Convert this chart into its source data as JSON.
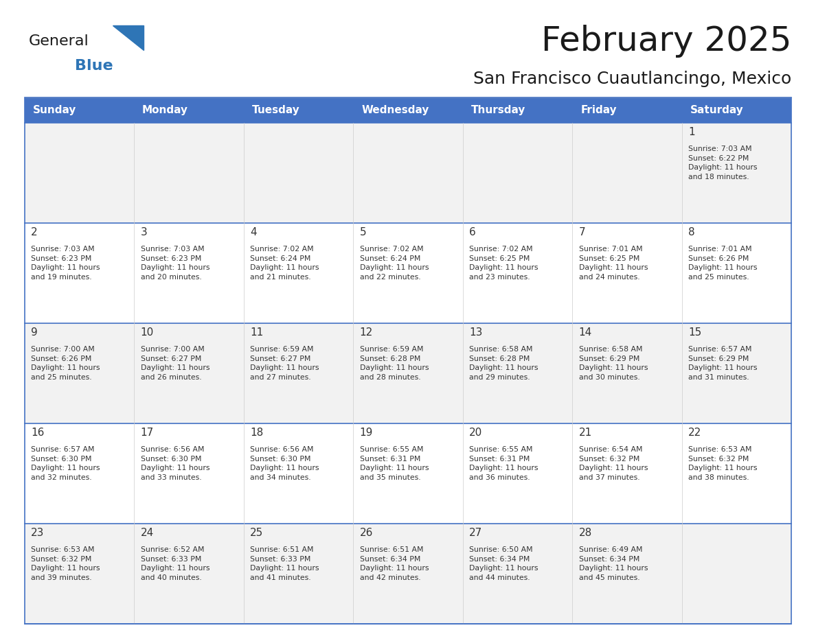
{
  "title": "February 2025",
  "subtitle": "San Francisco Cuautlancingo, Mexico",
  "header_color": "#4472C4",
  "header_text_color": "#FFFFFF",
  "day_names": [
    "Sunday",
    "Monday",
    "Tuesday",
    "Wednesday",
    "Thursday",
    "Friday",
    "Saturday"
  ],
  "background_color": "#FFFFFF",
  "cell_bg_color": "#FFFFFF",
  "alt_cell_bg_color": "#F2F2F2",
  "grid_color": "#4472C4",
  "date_color": "#333333",
  "info_color": "#333333",
  "logo_general_color": "#1a1a1a",
  "logo_blue_color": "#2E75B6",
  "calendar_data": [
    [
      {
        "day": "",
        "info": ""
      },
      {
        "day": "",
        "info": ""
      },
      {
        "day": "",
        "info": ""
      },
      {
        "day": "",
        "info": ""
      },
      {
        "day": "",
        "info": ""
      },
      {
        "day": "",
        "info": ""
      },
      {
        "day": "1",
        "info": "Sunrise: 7:03 AM\nSunset: 6:22 PM\nDaylight: 11 hours\nand 18 minutes."
      }
    ],
    [
      {
        "day": "2",
        "info": "Sunrise: 7:03 AM\nSunset: 6:23 PM\nDaylight: 11 hours\nand 19 minutes."
      },
      {
        "day": "3",
        "info": "Sunrise: 7:03 AM\nSunset: 6:23 PM\nDaylight: 11 hours\nand 20 minutes."
      },
      {
        "day": "4",
        "info": "Sunrise: 7:02 AM\nSunset: 6:24 PM\nDaylight: 11 hours\nand 21 minutes."
      },
      {
        "day": "5",
        "info": "Sunrise: 7:02 AM\nSunset: 6:24 PM\nDaylight: 11 hours\nand 22 minutes."
      },
      {
        "day": "6",
        "info": "Sunrise: 7:02 AM\nSunset: 6:25 PM\nDaylight: 11 hours\nand 23 minutes."
      },
      {
        "day": "7",
        "info": "Sunrise: 7:01 AM\nSunset: 6:25 PM\nDaylight: 11 hours\nand 24 minutes."
      },
      {
        "day": "8",
        "info": "Sunrise: 7:01 AM\nSunset: 6:26 PM\nDaylight: 11 hours\nand 25 minutes."
      }
    ],
    [
      {
        "day": "9",
        "info": "Sunrise: 7:00 AM\nSunset: 6:26 PM\nDaylight: 11 hours\nand 25 minutes."
      },
      {
        "day": "10",
        "info": "Sunrise: 7:00 AM\nSunset: 6:27 PM\nDaylight: 11 hours\nand 26 minutes."
      },
      {
        "day": "11",
        "info": "Sunrise: 6:59 AM\nSunset: 6:27 PM\nDaylight: 11 hours\nand 27 minutes."
      },
      {
        "day": "12",
        "info": "Sunrise: 6:59 AM\nSunset: 6:28 PM\nDaylight: 11 hours\nand 28 minutes."
      },
      {
        "day": "13",
        "info": "Sunrise: 6:58 AM\nSunset: 6:28 PM\nDaylight: 11 hours\nand 29 minutes."
      },
      {
        "day": "14",
        "info": "Sunrise: 6:58 AM\nSunset: 6:29 PM\nDaylight: 11 hours\nand 30 minutes."
      },
      {
        "day": "15",
        "info": "Sunrise: 6:57 AM\nSunset: 6:29 PM\nDaylight: 11 hours\nand 31 minutes."
      }
    ],
    [
      {
        "day": "16",
        "info": "Sunrise: 6:57 AM\nSunset: 6:30 PM\nDaylight: 11 hours\nand 32 minutes."
      },
      {
        "day": "17",
        "info": "Sunrise: 6:56 AM\nSunset: 6:30 PM\nDaylight: 11 hours\nand 33 minutes."
      },
      {
        "day": "18",
        "info": "Sunrise: 6:56 AM\nSunset: 6:30 PM\nDaylight: 11 hours\nand 34 minutes."
      },
      {
        "day": "19",
        "info": "Sunrise: 6:55 AM\nSunset: 6:31 PM\nDaylight: 11 hours\nand 35 minutes."
      },
      {
        "day": "20",
        "info": "Sunrise: 6:55 AM\nSunset: 6:31 PM\nDaylight: 11 hours\nand 36 minutes."
      },
      {
        "day": "21",
        "info": "Sunrise: 6:54 AM\nSunset: 6:32 PM\nDaylight: 11 hours\nand 37 minutes."
      },
      {
        "day": "22",
        "info": "Sunrise: 6:53 AM\nSunset: 6:32 PM\nDaylight: 11 hours\nand 38 minutes."
      }
    ],
    [
      {
        "day": "23",
        "info": "Sunrise: 6:53 AM\nSunset: 6:32 PM\nDaylight: 11 hours\nand 39 minutes."
      },
      {
        "day": "24",
        "info": "Sunrise: 6:52 AM\nSunset: 6:33 PM\nDaylight: 11 hours\nand 40 minutes."
      },
      {
        "day": "25",
        "info": "Sunrise: 6:51 AM\nSunset: 6:33 PM\nDaylight: 11 hours\nand 41 minutes."
      },
      {
        "day": "26",
        "info": "Sunrise: 6:51 AM\nSunset: 6:34 PM\nDaylight: 11 hours\nand 42 minutes."
      },
      {
        "day": "27",
        "info": "Sunrise: 6:50 AM\nSunset: 6:34 PM\nDaylight: 11 hours\nand 44 minutes."
      },
      {
        "day": "28",
        "info": "Sunrise: 6:49 AM\nSunset: 6:34 PM\nDaylight: 11 hours\nand 45 minutes."
      },
      {
        "day": "",
        "info": ""
      }
    ]
  ]
}
